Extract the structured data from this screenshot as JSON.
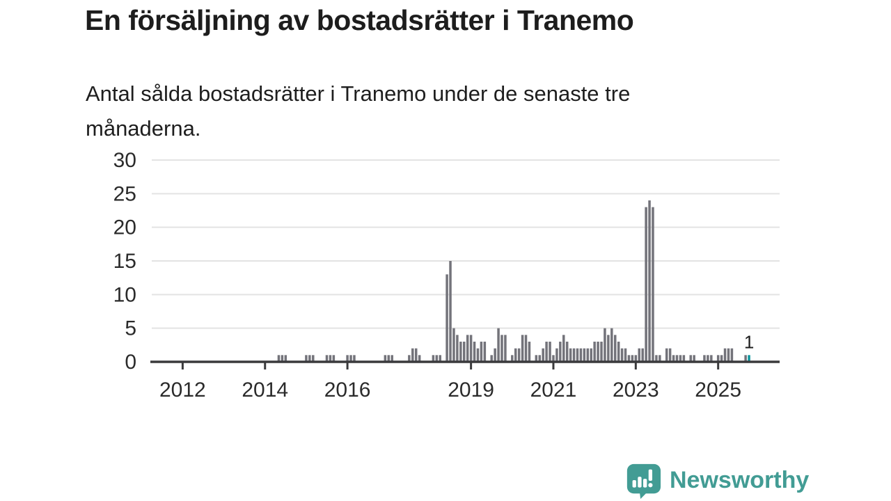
{
  "header": {
    "title": "En försäljning av bostadsrätter i Tranemo",
    "subtitle_line1": "Antal sålda bostadsrätter i Tranemo under de senaste tre",
    "subtitle_line2": "månaderna."
  },
  "footer": {
    "brand": "Newsworthy"
  },
  "colors": {
    "bar": "#73737a",
    "highlight": "#0b969d",
    "axis": "#3a3a3c",
    "grid": "#e3e3e3",
    "tick_label": "#2b2b2b",
    "value_label": "#1d1d1d",
    "brand": "#429c94",
    "logo_glyph": "#ffffff"
  },
  "chart_data": {
    "type": "bar",
    "title": "En försäljning av bostadsrätter i Tranemo",
    "subtitle": "Antal sålda bostadsrätter i Tranemo under de senaste tre månaderna.",
    "frequency": "monthly",
    "start_month": "2011-04",
    "end_month": "2025-10",
    "values": [
      0,
      0,
      0,
      0,
      0,
      0,
      0,
      0,
      0,
      0,
      0,
      0,
      0,
      0,
      0,
      0,
      0,
      0,
      0,
      0,
      0,
      0,
      0,
      0,
      0,
      0,
      0,
      0,
      0,
      0,
      0,
      0,
      0,
      0,
      0,
      0,
      0,
      1,
      1,
      1,
      0,
      0,
      0,
      0,
      0,
      1,
      1,
      1,
      0,
      0,
      0,
      1,
      1,
      1,
      0,
      0,
      0,
      1,
      1,
      1,
      0,
      0,
      0,
      0,
      0,
      0,
      0,
      0,
      1,
      1,
      1,
      0,
      0,
      0,
      0,
      1,
      2,
      2,
      1,
      0,
      0,
      0,
      1,
      1,
      1,
      0,
      13,
      15,
      5,
      4,
      3,
      3,
      4,
      4,
      3,
      2,
      3,
      3,
      0,
      1,
      2,
      5,
      4,
      4,
      0,
      1,
      2,
      2,
      4,
      4,
      3,
      0,
      1,
      1,
      2,
      3,
      3,
      1,
      2,
      3,
      4,
      3,
      2,
      2,
      2,
      2,
      2,
      2,
      2,
      3,
      3,
      3,
      5,
      4,
      5,
      4,
      3,
      2,
      2,
      1,
      1,
      1,
      2,
      2,
      23,
      24,
      23,
      1,
      1,
      0,
      2,
      2,
      1,
      1,
      1,
      1,
      0,
      1,
      1,
      0,
      0,
      1,
      1,
      1,
      0,
      1,
      1,
      2,
      2,
      2,
      0,
      0,
      0,
      1,
      1
    ],
    "highlight": {
      "index": 174,
      "month": "2025-10",
      "value": 1,
      "label": "1"
    },
    "ylim": [
      0,
      30
    ],
    "yticks": [
      0,
      5,
      10,
      15,
      20,
      25,
      30
    ],
    "xtick_years": [
      2012,
      2014,
      2016,
      2019,
      2021,
      2023,
      2025
    ],
    "grid": "horizontal",
    "legend": "none",
    "xlabel": "",
    "ylabel": ""
  }
}
